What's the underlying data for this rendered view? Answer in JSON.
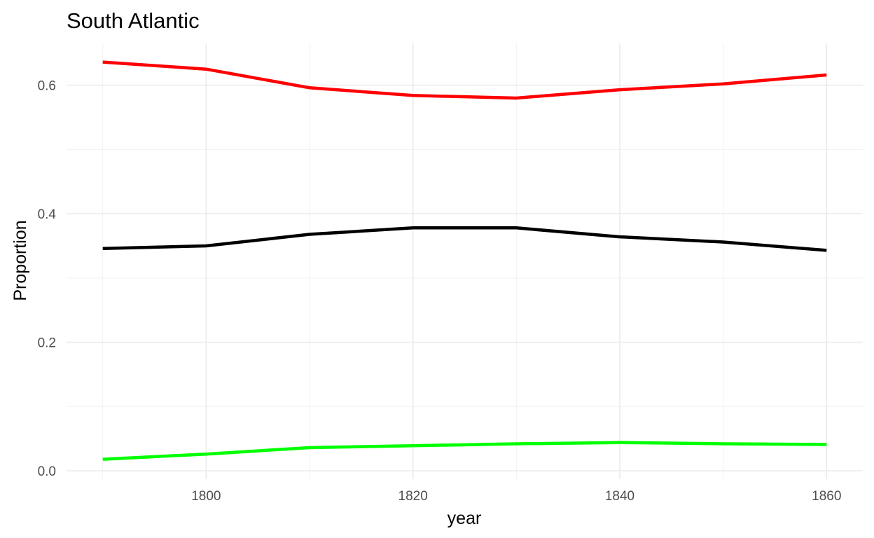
{
  "chart_data": {
    "type": "line",
    "title": "South Atlantic",
    "xlabel": "year",
    "ylabel": "Proportion",
    "x": [
      1790,
      1800,
      1810,
      1820,
      1830,
      1840,
      1850,
      1860
    ],
    "xlim": [
      1786.5,
      1863.5
    ],
    "ylim": [
      -0.013,
      0.665
    ],
    "x_ticks": [
      1800,
      1820,
      1840,
      1860
    ],
    "x_tick_labels": [
      "1800",
      "1820",
      "1840",
      "1860"
    ],
    "y_ticks": [
      0.0,
      0.2,
      0.4,
      0.6
    ],
    "y_tick_labels": [
      "0.0",
      "0.2",
      "0.4",
      "0.6"
    ],
    "grid": true,
    "legend": "none",
    "series": [
      {
        "color": "#ff0000",
        "values": [
          0.636,
          0.625,
          0.596,
          0.584,
          0.58,
          0.593,
          0.602,
          0.616
        ]
      },
      {
        "color": "#000000",
        "values": [
          0.346,
          0.35,
          0.368,
          0.378,
          0.378,
          0.364,
          0.356,
          0.343
        ]
      },
      {
        "color": "#00ff00",
        "values": [
          0.018,
          0.026,
          0.036,
          0.039,
          0.042,
          0.044,
          0.042,
          0.041
        ]
      }
    ]
  }
}
